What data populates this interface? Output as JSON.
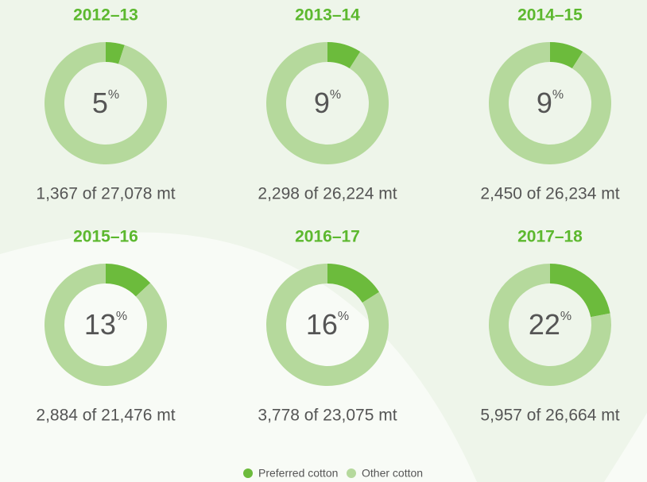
{
  "chart_data": [
    {
      "type": "pie",
      "title": "2012–13",
      "categories": [
        "Preferred cotton",
        "Other cotton"
      ],
      "colors": [
        "#6cbb3c",
        "#b5d99c"
      ],
      "values": [
        5,
        95
      ],
      "value_labels": [
        "5%",
        null
      ],
      "subtitle": "1,367 of 27,078 mt"
    },
    {
      "type": "pie",
      "title": "2013–14",
      "categories": [
        "Preferred cotton",
        "Other cotton"
      ],
      "colors": [
        "#6cbb3c",
        "#b5d99c"
      ],
      "values": [
        9,
        91
      ],
      "value_labels": [
        "9%",
        null
      ],
      "subtitle": "2,298 of 26,224 mt"
    },
    {
      "type": "pie",
      "title": "2014–15",
      "categories": [
        "Preferred cotton",
        "Other cotton"
      ],
      "colors": [
        "#6cbb3c",
        "#b5d99c"
      ],
      "values": [
        9,
        91
      ],
      "value_labels": [
        "9%",
        null
      ],
      "subtitle": "2,450 of 26,234 mt"
    },
    {
      "type": "pie",
      "title": "2015–16",
      "categories": [
        "Preferred cotton",
        "Other cotton"
      ],
      "colors": [
        "#6cbb3c",
        "#b5d99c"
      ],
      "values": [
        13,
        87
      ],
      "value_labels": [
        "13%",
        null
      ],
      "subtitle": "2,884 of 21,476 mt"
    },
    {
      "type": "pie",
      "title": "2016–17",
      "categories": [
        "Preferred cotton",
        "Other cotton"
      ],
      "colors": [
        "#6cbb3c",
        "#b5d99c"
      ],
      "values": [
        16,
        84
      ],
      "value_labels": [
        "16%",
        null
      ],
      "subtitle": "3,778 of 23,075 mt"
    },
    {
      "type": "pie",
      "title": "2017–18",
      "categories": [
        "Preferred cotton",
        "Other cotton"
      ],
      "colors": [
        "#6cbb3c",
        "#b5d99c"
      ],
      "values": [
        22,
        78
      ],
      "value_labels": [
        "22%",
        null
      ],
      "subtitle": "5,957 of 26,664 mt"
    }
  ]
}
